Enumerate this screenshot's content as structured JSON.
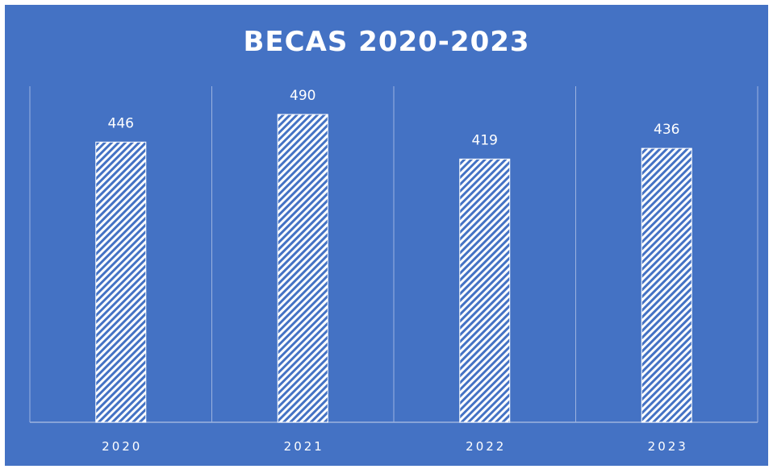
{
  "chart_data": {
    "type": "bar",
    "title": "BECAS 2020-2023",
    "xlabel": "",
    "ylabel": "",
    "categories": [
      "2020",
      "2021",
      "2022",
      "2023"
    ],
    "values": [
      446,
      490,
      419,
      436
    ],
    "data_labels": [
      "446",
      "490",
      "419",
      "436"
    ],
    "ylim": [
      0,
      490
    ],
    "grid": "vertical",
    "legend": "none",
    "bar_pattern": "diagonal-hatch",
    "colors": {
      "background": "#4472c4",
      "bar": "#ffffff",
      "text": "#ffffff",
      "grid": "#9db3df"
    }
  }
}
